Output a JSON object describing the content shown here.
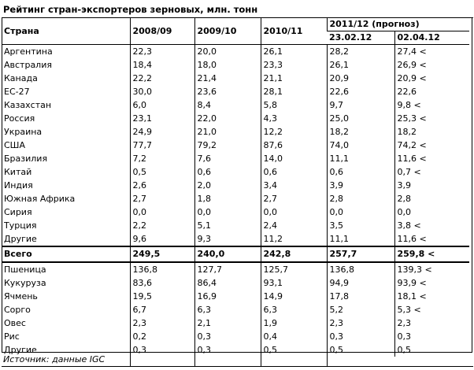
{
  "title": "Рейтинг стран-экспортеров зерновых, млн. тонн",
  "header": {
    "country": "Страна",
    "years": [
      "2008/09",
      "2009/10",
      "2010/11"
    ],
    "forecast": "2011/12 (прогноз)",
    "forecast_dates": [
      "23.02.12",
      "02.04.12"
    ]
  },
  "countries": [
    {
      "name": "Аргентина",
      "v": [
        "22,3",
        "20,0",
        "26,1",
        "28,2",
        "27,4 <"
      ]
    },
    {
      "name": "Австралия",
      "v": [
        "18,4",
        "18,0",
        "23,3",
        "26,1",
        "26,9 <"
      ]
    },
    {
      "name": "Канада",
      "v": [
        "22,2",
        "21,4",
        "21,1",
        "20,9",
        "20,9 <"
      ]
    },
    {
      "name": "ЕС-27",
      "v": [
        "30,0",
        "23,6",
        "28,1",
        "22,6",
        "22,6"
      ]
    },
    {
      "name": "Казахстан",
      "v": [
        "6,0",
        "8,4",
        "5,8",
        "9,7",
        "9,8 <"
      ]
    },
    {
      "name": "Россия",
      "v": [
        "23,1",
        "22,0",
        "4,3",
        "25,0",
        "25,3 <"
      ]
    },
    {
      "name": "Украина",
      "v": [
        "24,9",
        "21,0",
        "12,2",
        "18,2",
        "18,2"
      ]
    },
    {
      "name": "США",
      "v": [
        "77,7",
        "79,2",
        "87,6",
        "74,0",
        "74,2 <"
      ]
    },
    {
      "name": "Бразилия",
      "v": [
        "7,2",
        "7,6",
        "14,0",
        "11,1",
        "11,6 <"
      ]
    },
    {
      "name": "Китай",
      "v": [
        "0,5",
        "0,6",
        "0,6",
        "0,6",
        "0,7 <"
      ]
    },
    {
      "name": "Индия",
      "v": [
        "2,6",
        "2,0",
        "3,4",
        "3,9",
        "3,9"
      ]
    },
    {
      "name": "Южная Африка",
      "v": [
        "2,7",
        "1,8",
        "2,7",
        "2,8",
        "2,8"
      ]
    },
    {
      "name": "Сирия",
      "v": [
        "0,0",
        "0,0",
        "0,0",
        "0,0",
        "0,0"
      ]
    },
    {
      "name": "Турция",
      "v": [
        "2,2",
        "5,1",
        "2,4",
        "3,5",
        "3,8 <"
      ]
    },
    {
      "name": "Другие",
      "v": [
        "9,6",
        "9,3",
        "11,2",
        "11,1",
        "11,6 <"
      ]
    }
  ],
  "total": {
    "name": "Всего",
    "v": [
      "249,5",
      "240,0",
      "242,8",
      "257,7",
      "259,8 <"
    ]
  },
  "crops": [
    {
      "name": "Пшеница",
      "v": [
        "136,8",
        "127,7",
        "125,7",
        "136,8",
        "139,3 <"
      ]
    },
    {
      "name": "Кукуруза",
      "v": [
        "83,6",
        "86,4",
        "93,1",
        "94,9",
        "93,9 <"
      ]
    },
    {
      "name": "Ячмень",
      "v": [
        "19,5",
        "16,9",
        "14,9",
        "17,8",
        "18,1 <"
      ]
    },
    {
      "name": "Сорго",
      "v": [
        "6,7",
        "6,3",
        "6,3",
        "5,2",
        "5,3 <"
      ]
    },
    {
      "name": "Овес",
      "v": [
        "2,3",
        "2,1",
        "1,9",
        "2,3",
        "2,3"
      ]
    },
    {
      "name": "Рис",
      "v": [
        "0,2",
        "0,3",
        "0,4",
        "0,3",
        "0,3"
      ]
    },
    {
      "name": "Другие",
      "v": [
        "0,3",
        "0,3",
        "0,5",
        "0,5",
        "0,5"
      ]
    }
  ],
  "source": "Источник: данные IGC"
}
